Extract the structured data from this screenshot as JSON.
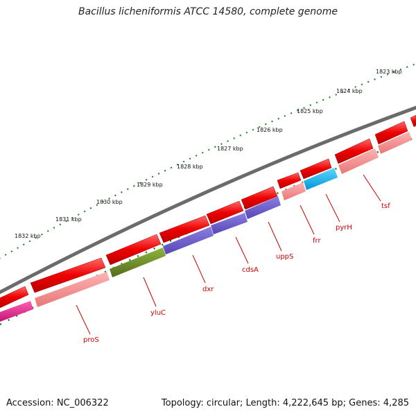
{
  "title": "Bacillus licheniformis ATCC 14580, complete genome",
  "footer": {
    "accession": "Accession: NC_006322",
    "topology": "Topology: circular; Length: 4,222,645 bp; Genes: 4,285"
  },
  "colors": {
    "backbone": "#6b6b6b",
    "tick": "#1a7a1a",
    "label": "#cc0000",
    "gene_red": "#ee0000",
    "gene_pink": "#f08080",
    "gene_olive": "#6b8e23",
    "gene_purple": "#6a5acd",
    "gene_cyan": "#00bfff",
    "gene_magenta": "#e0208c"
  },
  "scale_labels": [
    "1823 kbp",
    "1824 kbp",
    "1825 kbp",
    "1826 kbp",
    "1827 kbp",
    "1828 kbp",
    "1829 kbp",
    "1830 kbp",
    "1831 kbp",
    "1832 kbp"
  ],
  "gene_labels": [
    "tsf",
    "pyrH",
    "frr",
    "uppS",
    "cdsA",
    "dxr",
    "yluC",
    "proS"
  ]
}
